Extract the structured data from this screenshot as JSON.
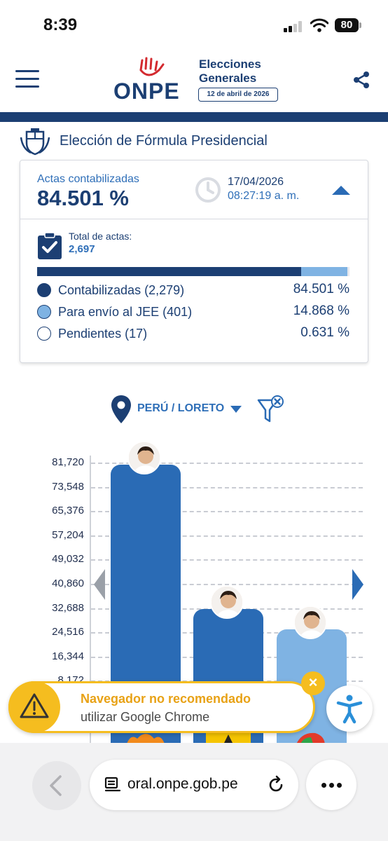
{
  "status_bar": {
    "time": "8:39",
    "battery": "80"
  },
  "header": {
    "logo": "ONPE",
    "elections_line1": "Elecciones",
    "elections_line2": "Generales",
    "election_date": "12 de abril de 2026"
  },
  "page": {
    "title": "Elección de Fórmula Presidencial"
  },
  "summary": {
    "actas_label": "Actas contabilizadas",
    "actas_percent": "84.501 %",
    "update_date": "17/04/2026",
    "update_time": "08:27:19 a. m.",
    "total_label": "Total de actas:",
    "total_value": "2,697",
    "progress": {
      "contabilizadas": 84.501,
      "jee": 14.868,
      "pendientes": 0.631
    },
    "legend": [
      {
        "label": "Contabilizadas (2,279)",
        "percent": "84.501 %",
        "color": "#1c3f73"
      },
      {
        "label": "Para envío al JEE (401)",
        "percent": "14.868 %",
        "color": "#7fb3e3"
      },
      {
        "label": "Pendientes (17)",
        "percent": "0.631 %",
        "color": "#ffffff"
      }
    ]
  },
  "filter": {
    "region": "PERÚ / LORETO"
  },
  "chart": {
    "y_ticks": [
      "81,720",
      "73,548",
      "65,376",
      "57,204",
      "49,032",
      "40,860",
      "32,688",
      "24,516",
      "16,344",
      "8,172"
    ],
    "bars": [
      {
        "value": 81000,
        "color": "#2a6bb5"
      },
      {
        "value": 32300,
        "color": "#2a6bb5"
      },
      {
        "value": 25600,
        "color": "#7fb3e3"
      }
    ]
  },
  "toast": {
    "title": "Navegador no recomendado",
    "subtitle": "utilizar Google Chrome"
  },
  "browser": {
    "url": "oral.onpe.gob.pe"
  }
}
